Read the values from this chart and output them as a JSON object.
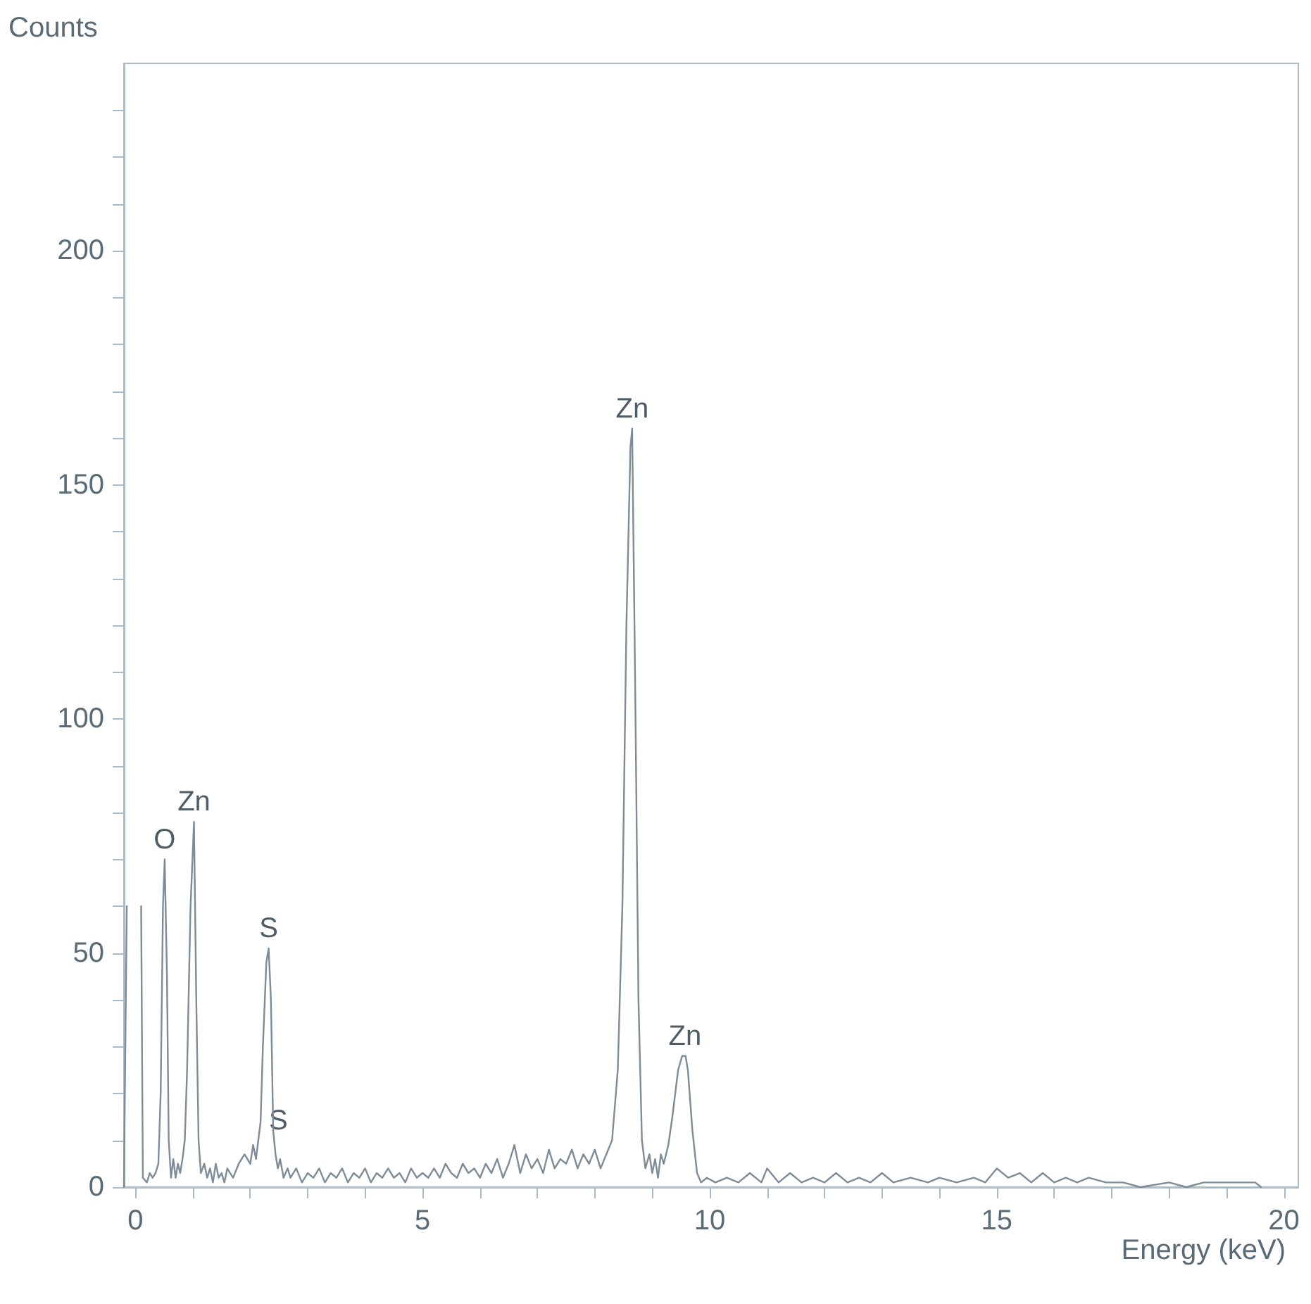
{
  "chart_data": {
    "type": "line",
    "xlabel": "Energy (keV)",
    "ylabel": "Counts",
    "x": [
      -0.2,
      -0.15,
      -0.12,
      0.05,
      0.1,
      0.13,
      0.2,
      0.25,
      0.3,
      0.35,
      0.4,
      0.44,
      0.48,
      0.51,
      0.55,
      0.58,
      0.62,
      0.66,
      0.7,
      0.74,
      0.78,
      0.82,
      0.86,
      0.9,
      0.96,
      1.02,
      1.06,
      1.1,
      1.14,
      1.2,
      1.25,
      1.3,
      1.35,
      1.4,
      1.45,
      1.5,
      1.55,
      1.6,
      1.7,
      1.8,
      1.9,
      2.0,
      2.05,
      2.1,
      2.14,
      2.18,
      2.22,
      2.28,
      2.32,
      2.36,
      2.4,
      2.44,
      2.48,
      2.52,
      2.58,
      2.65,
      2.7,
      2.8,
      2.9,
      3.0,
      3.1,
      3.2,
      3.3,
      3.4,
      3.5,
      3.6,
      3.7,
      3.8,
      3.9,
      4.0,
      4.1,
      4.2,
      4.3,
      4.4,
      4.5,
      4.6,
      4.7,
      4.8,
      4.9,
      5.0,
      5.1,
      5.2,
      5.3,
      5.4,
      5.5,
      5.6,
      5.7,
      5.8,
      5.9,
      6.0,
      6.1,
      6.2,
      6.3,
      6.4,
      6.5,
      6.6,
      6.7,
      6.8,
      6.9,
      7.0,
      7.1,
      7.2,
      7.3,
      7.4,
      7.5,
      7.6,
      7.7,
      7.8,
      7.9,
      8.0,
      8.1,
      8.2,
      8.3,
      8.4,
      8.48,
      8.55,
      8.62,
      8.65,
      8.7,
      8.76,
      8.82,
      8.88,
      8.95,
      9.0,
      9.05,
      9.1,
      9.15,
      9.2,
      9.28,
      9.35,
      9.45,
      9.52,
      9.58,
      9.62,
      9.7,
      9.78,
      9.85,
      9.95,
      10.1,
      10.3,
      10.5,
      10.7,
      10.9,
      11.0,
      11.2,
      11.4,
      11.6,
      11.8,
      12.0,
      12.2,
      12.4,
      12.6,
      12.8,
      13.0,
      13.2,
      13.5,
      13.8,
      14.0,
      14.3,
      14.6,
      14.8,
      15.0,
      15.2,
      15.4,
      15.6,
      15.8,
      16.0,
      16.2,
      16.4,
      16.6,
      16.9,
      17.2,
      17.5,
      18.0,
      18.3,
      18.6,
      19.0,
      19.5,
      19.6
    ],
    "series": [
      {
        "color": "#7d8c99",
        "values": [
          0,
          60,
          null,
          null,
          60,
          2,
          1,
          3,
          2,
          3,
          5,
          20,
          60,
          70,
          45,
          10,
          2,
          6,
          2,
          5,
          3,
          6,
          10,
          25,
          60,
          78,
          40,
          10,
          3,
          5,
          2,
          4,
          1,
          5,
          2,
          3,
          1,
          4,
          2,
          5,
          7,
          5,
          9,
          6,
          10,
          14,
          30,
          48,
          51,
          40,
          12,
          7,
          4,
          6,
          2,
          4,
          2,
          4,
          1,
          3,
          2,
          4,
          1,
          3,
          2,
          4,
          1,
          3,
          2,
          4,
          1,
          3,
          2,
          4,
          2,
          3,
          1,
          4,
          2,
          3,
          2,
          4,
          2,
          5,
          3,
          2,
          5,
          3,
          4,
          2,
          5,
          3,
          6,
          2,
          5,
          9,
          3,
          7,
          4,
          6,
          3,
          8,
          4,
          6,
          5,
          8,
          4,
          7,
          5,
          8,
          4,
          7,
          10,
          25,
          60,
          120,
          158,
          162,
          110,
          40,
          10,
          4,
          7,
          3,
          6,
          2,
          7,
          5,
          9,
          15,
          25,
          28,
          28,
          25,
          12,
          3,
          1,
          2,
          1,
          2,
          1,
          3,
          1,
          4,
          1,
          3,
          1,
          2,
          1,
          3,
          1,
          2,
          1,
          3,
          1,
          2,
          1,
          2,
          1,
          2,
          1,
          4,
          2,
          3,
          1,
          3,
          1,
          2,
          1,
          2,
          1,
          1,
          0,
          1,
          0,
          1,
          1,
          1,
          0
        ]
      }
    ],
    "xlim": [
      -0.2,
      20.25
    ],
    "ylim": [
      0,
      240
    ],
    "xticks": [
      0,
      {
        "value": 1,
        "label": null
      },
      {
        "value": 2,
        "label": null
      },
      {
        "value": 3,
        "label": null
      },
      {
        "value": 4,
        "label": null
      },
      5,
      {
        "value": 6,
        "label": null
      },
      {
        "value": 7,
        "label": null
      },
      {
        "value": 8,
        "label": null
      },
      {
        "value": 9,
        "label": null
      },
      10,
      {
        "value": 11,
        "label": null
      },
      {
        "value": 12,
        "label": null
      },
      {
        "value": 13,
        "label": null
      },
      {
        "value": 14,
        "label": null
      },
      15,
      {
        "value": 16,
        "label": null
      },
      {
        "value": 17,
        "label": null
      },
      {
        "value": 18,
        "label": null
      },
      {
        "value": 19,
        "label": null
      },
      20
    ],
    "yticks": [
      0,
      {
        "value": 10,
        "label": null
      },
      {
        "value": 20,
        "label": null
      },
      {
        "value": 30,
        "label": null
      },
      {
        "value": 40,
        "label": null
      },
      50,
      {
        "value": 60,
        "label": null
      },
      {
        "value": 70,
        "label": null
      },
      {
        "value": 80,
        "label": null
      },
      {
        "value": 90,
        "label": null
      },
      100,
      {
        "value": 110,
        "label": null
      },
      {
        "value": 120,
        "label": null
      },
      {
        "value": 130,
        "label": null
      },
      {
        "value": 140,
        "label": null
      },
      150,
      {
        "value": 160,
        "label": null
      },
      {
        "value": 170,
        "label": null
      },
      {
        "value": 180,
        "label": null
      },
      {
        "value": 190,
        "label": null
      },
      200,
      {
        "value": 210,
        "label": null
      },
      {
        "value": 220,
        "label": null
      },
      {
        "value": 230,
        "label": null
      }
    ],
    "annotations": [
      {
        "text": "O",
        "x": 0.51,
        "y": 70
      },
      {
        "text": "Zn",
        "x": 1.02,
        "y": 78
      },
      {
        "text": "S",
        "x": 2.32,
        "y": 51
      },
      "S",
      {
        "text": "Zn",
        "x": 8.65,
        "y": 162
      },
      {
        "text": "Zn",
        "x": 9.57,
        "y": 28
      }
    ],
    "grid": false,
    "marker": "none",
    "line_style": "solid"
  }
}
